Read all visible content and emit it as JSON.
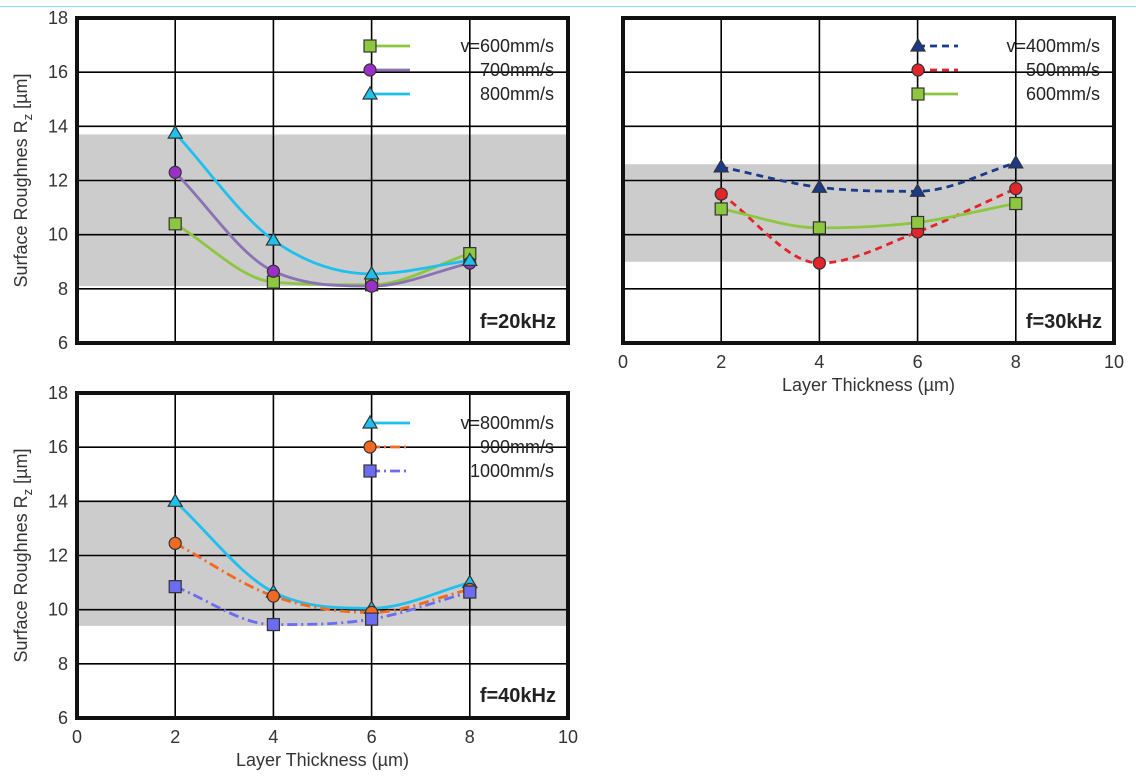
{
  "chart_data": [
    {
      "type": "line",
      "title": "",
      "annotation": "f=20kHz",
      "xlabel": "",
      "ylabel": "Surface Roughnes R",
      "ylabel_sub": "z",
      "ylabel_unit": " [µm]",
      "xlim": [
        0,
        10
      ],
      "ylim": [
        6,
        18
      ],
      "xticks": [
        "2",
        "4",
        "6",
        "8"
      ],
      "yticks": [
        "6",
        "8",
        "10",
        "12",
        "14",
        "16",
        "18"
      ],
      "band": [
        8.1,
        13.7
      ],
      "grid": true,
      "legend_position": "top-right",
      "x": [
        2,
        4,
        6,
        8
      ],
      "series": [
        {
          "name": "v=600mm/s",
          "values": [
            10.4,
            8.25,
            8.15,
            9.3
          ],
          "color": "#8dc63f",
          "marker": "square",
          "marker_color": "#8dc63f",
          "dash": "solid"
        },
        {
          "name": "700mm/s",
          "values": [
            12.3,
            8.65,
            8.1,
            8.95
          ],
          "color": "#8b72b4",
          "marker": "circle",
          "marker_color": "#9b30c8",
          "dash": "solid"
        },
        {
          "name": "800mm/s",
          "values": [
            13.75,
            9.8,
            8.55,
            9.05
          ],
          "color": "#1ec0ee",
          "marker": "triangle",
          "marker_color": "#1ec0ee",
          "dash": "solid"
        }
      ]
    },
    {
      "type": "line",
      "title": "",
      "annotation": "f=30kHz",
      "xlabel": "Layer Thickness (µm)",
      "ylabel": "",
      "xlim": [
        0,
        10
      ],
      "ylim": [
        6,
        18
      ],
      "xticks": [
        "0",
        "2",
        "4",
        "6",
        "8",
        "10"
      ],
      "yticks": [],
      "band": [
        9.0,
        12.6
      ],
      "grid": true,
      "legend_position": "top-right",
      "x": [
        2,
        4,
        6,
        8
      ],
      "series": [
        {
          "name": "v=400mm/s",
          "values": [
            12.5,
            11.75,
            11.6,
            12.65
          ],
          "color": "#1b3a8c",
          "marker": "triangle",
          "marker_color": "#1b3a8c",
          "dash": "dashed"
        },
        {
          "name": "500mm/s",
          "values": [
            11.5,
            8.95,
            10.1,
            11.7
          ],
          "color": "#e4242b",
          "marker": "circle",
          "marker_color": "#e4242b",
          "dash": "dashed"
        },
        {
          "name": "600mm/s",
          "values": [
            10.95,
            10.25,
            10.45,
            11.15
          ],
          "color": "#8dc63f",
          "marker": "square",
          "marker_color": "#8dc63f",
          "dash": "solid"
        }
      ]
    },
    {
      "type": "line",
      "title": "",
      "annotation": "f=40kHz",
      "xlabel": "Layer Thickness (µm)",
      "ylabel": "Surface Roughnes R",
      "ylabel_sub": "z",
      "ylabel_unit": " [µm]",
      "xlim": [
        0,
        10
      ],
      "ylim": [
        6,
        18
      ],
      "xticks": [
        "0",
        "2",
        "4",
        "6",
        "8",
        "10"
      ],
      "yticks": [
        "6",
        "8",
        "10",
        "12",
        "14",
        "16",
        "18"
      ],
      "band": [
        9.4,
        14.0
      ],
      "grid": true,
      "legend_position": "top-right",
      "x": [
        2,
        4,
        6,
        8
      ],
      "series": [
        {
          "name": "v=800mm/s",
          "values": [
            14.0,
            10.65,
            10.05,
            11.0
          ],
          "color": "#1ec0ee",
          "marker": "triangle",
          "marker_color": "#1ec0ee",
          "dash": "solid"
        },
        {
          "name": "900mm/s",
          "values": [
            12.45,
            10.5,
            9.9,
            10.75
          ],
          "color": "#f26a21",
          "marker": "circle",
          "marker_color": "#f26a21",
          "dash": "dashdot"
        },
        {
          "name": "1000mm/s",
          "values": [
            10.85,
            9.45,
            9.65,
            10.65
          ],
          "color": "#6c6cf0",
          "marker": "square",
          "marker_color": "#6c6cf0",
          "dash": "dashdot"
        }
      ]
    }
  ]
}
